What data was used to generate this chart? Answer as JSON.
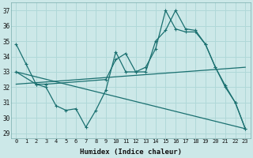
{
  "xlabel": "Humidex (Indice chaleur)",
  "xlim": [
    -0.5,
    23.5
  ],
  "ylim": [
    28.7,
    37.5
  ],
  "yticks": [
    29,
    30,
    31,
    32,
    33,
    34,
    35,
    36,
    37
  ],
  "xticks": [
    0,
    1,
    2,
    3,
    4,
    5,
    6,
    7,
    8,
    9,
    10,
    11,
    12,
    13,
    14,
    15,
    16,
    17,
    18,
    19,
    20,
    21,
    22,
    23
  ],
  "bg_color": "#cce8e8",
  "line_color": "#1a7070",
  "grid_color": "#b0d8d8",
  "lines": [
    {
      "x": [
        0,
        1,
        2,
        3,
        4,
        5,
        6,
        7,
        8,
        9,
        10,
        11,
        12,
        13,
        14,
        15,
        16,
        17,
        18,
        19,
        20,
        21,
        22,
        23
      ],
      "y": [
        34.8,
        33.5,
        32.2,
        32.0,
        30.8,
        30.5,
        30.6,
        29.4,
        30.5,
        31.8,
        34.3,
        33.0,
        33.0,
        33.0,
        35.0,
        35.7,
        37.0,
        35.8,
        35.7,
        34.8,
        33.3,
        32.1,
        31.0,
        29.3
      ],
      "has_markers": true
    },
    {
      "x": [
        0,
        2,
        3,
        9,
        10,
        11,
        12,
        13,
        14,
        15,
        16,
        17,
        18,
        19,
        20,
        21,
        22,
        23
      ],
      "y": [
        33.0,
        32.2,
        32.2,
        32.5,
        33.8,
        34.2,
        33.0,
        33.3,
        34.5,
        37.0,
        35.8,
        35.6,
        35.6,
        34.8,
        33.3,
        32.0,
        31.0,
        29.3
      ],
      "has_markers": true
    },
    {
      "x": [
        0,
        23
      ],
      "y": [
        33.0,
        29.3
      ],
      "has_markers": false
    },
    {
      "x": [
        0,
        23
      ],
      "y": [
        32.2,
        33.3
      ],
      "has_markers": false
    }
  ]
}
